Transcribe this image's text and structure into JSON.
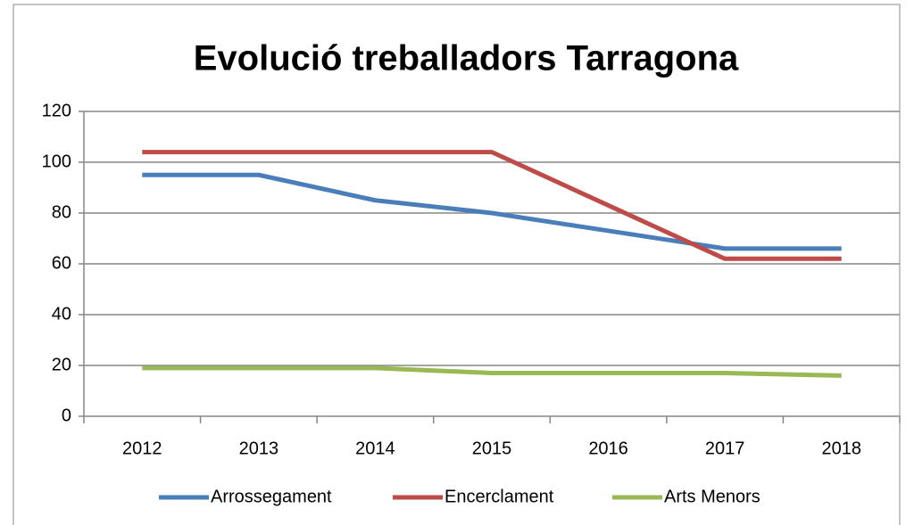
{
  "chart_data": {
    "type": "line",
    "title": "Evolució treballadors Tarragona",
    "categories": [
      "2012",
      "2013",
      "2014",
      "2015",
      "2016",
      "2017",
      "2018"
    ],
    "series": [
      {
        "name": "Arrossegament",
        "color": "#4a7ebb",
        "values": [
          95,
          95,
          85,
          80,
          73,
          66,
          66
        ]
      },
      {
        "name": "Encerclament",
        "color": "#be4b48",
        "values": [
          104,
          104,
          104,
          104,
          83,
          62,
          62
        ]
      },
      {
        "name": "Arts Menors",
        "color": "#98b954",
        "values": [
          19,
          19,
          19,
          17,
          17,
          17,
          16
        ]
      }
    ],
    "ylim": [
      0,
      120
    ],
    "yticks": [
      0,
      20,
      40,
      60,
      80,
      100,
      120
    ],
    "grid": true,
    "legend": "bottom"
  }
}
